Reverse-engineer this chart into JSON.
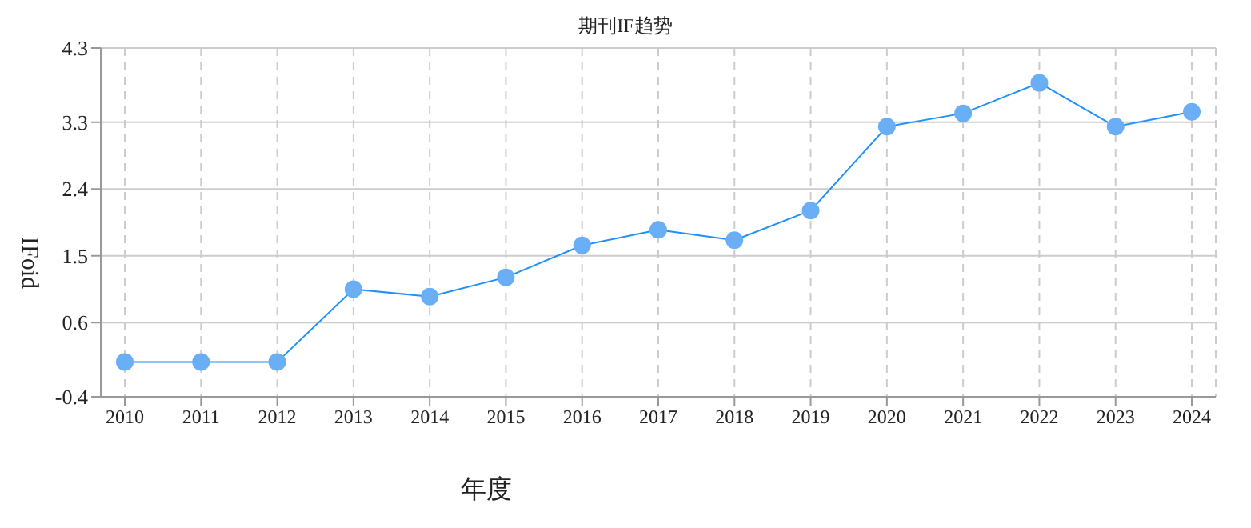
{
  "chart_data": {
    "type": "line",
    "title": "期刊IF趋势",
    "xlabel": "年度",
    "ylabel": "IFoid",
    "categories": [
      "2010",
      "2011",
      "2012",
      "2013",
      "2014",
      "2015",
      "2016",
      "2017",
      "2018",
      "2019",
      "2020",
      "2021",
      "2022",
      "2023",
      "2024"
    ],
    "series": [
      {
        "color": "#1e90ff",
        "values": [
          0.07,
          0.07,
          0.07,
          1.05,
          0.95,
          1.21,
          1.64,
          1.85,
          1.71,
          2.11,
          3.24,
          3.42,
          3.83,
          3.24,
          3.44
        ]
      }
    ],
    "ylim": [
      -0.4,
      4.3
    ],
    "yticks": [
      -0.4,
      0.6,
      1.5,
      2.4,
      3.3,
      4.3
    ],
    "grid": true,
    "marker": "circle",
    "line_style": "solid"
  }
}
